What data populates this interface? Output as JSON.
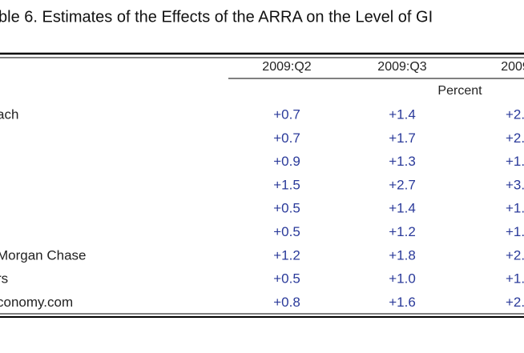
{
  "table": {
    "title": "ble 6. Estimates of the Effects of the ARRA on the Level of GI",
    "columns": [
      "2009:Q2",
      "2009:Q3",
      "2009"
    ],
    "unit": "Percent",
    "rows": [
      {
        "label": "ach",
        "values": [
          "+0.7",
          "+1.4",
          "+2."
        ]
      },
      {
        "values": [
          "+0.7",
          "+1.7",
          "+2."
        ]
      },
      {
        "values": [
          "+0.9",
          "+1.3",
          "+1."
        ]
      },
      {
        "values": [
          "+1.5",
          "+2.7",
          "+3."
        ]
      },
      {
        "values": [
          "+0.5",
          "+1.4",
          "+1."
        ]
      },
      {
        "values": [
          "+0.5",
          "+1.2",
          "+1."
        ]
      },
      {
        "label": "Morgan Chase",
        "values": [
          "+1.2",
          "+1.8",
          "+2."
        ]
      },
      {
        "label": "rs",
        "values": [
          "+0.5",
          "+1.0",
          "+1."
        ]
      },
      {
        "label": "conomy.com",
        "values": [
          "+0.8",
          "+1.6",
          "+2."
        ]
      }
    ]
  }
}
